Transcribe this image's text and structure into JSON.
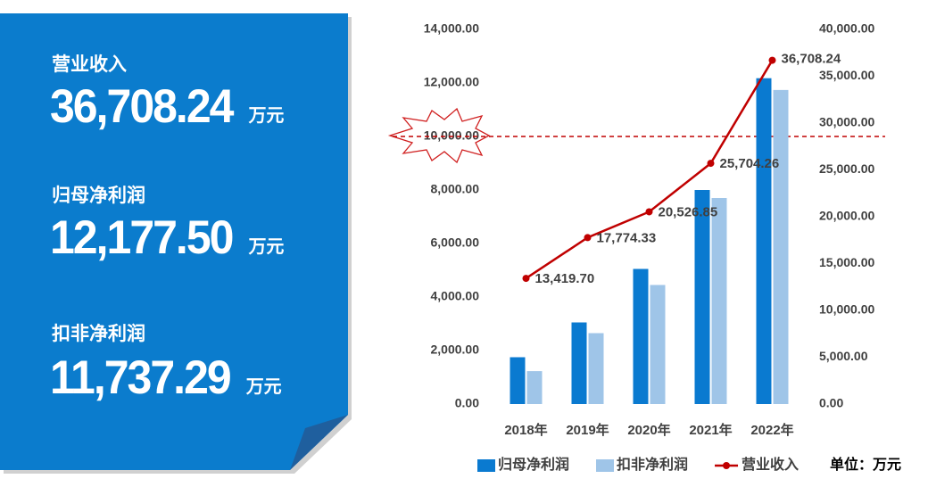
{
  "kpis": [
    {
      "label": "营业收入",
      "value": "36,708.24",
      "unit": "万元"
    },
    {
      "label": "归母净利润",
      "value": "12,177.50",
      "unit": "万元"
    },
    {
      "label": "扣非净利润",
      "value": "11,737.29",
      "unit": "万元"
    }
  ],
  "chart_data": {
    "type": "combo",
    "categories": [
      "2018年",
      "2019年",
      "2020年",
      "2021年",
      "2022年"
    ],
    "series": [
      {
        "name": "归母净利润",
        "type": "bar",
        "color": "#0a7ad0",
        "values": [
          1750,
          3050,
          5050,
          8000,
          12177.5
        ]
      },
      {
        "name": "扣非净利润",
        "type": "bar",
        "color": "#9fc5e8",
        "values": [
          1230,
          2650,
          4450,
          7700,
          11737.29
        ]
      },
      {
        "name": "营业收入",
        "type": "line",
        "axis": "y2",
        "color": "#c00000",
        "values": [
          13419.7,
          17774.33,
          20526.85,
          25704.26,
          36708.24
        ],
        "value_labels": [
          "13,419.70",
          "17,774.33",
          "20,526.85",
          "25,704.26",
          "36,708.24"
        ]
      }
    ],
    "ylim": [
      0,
      14000
    ],
    "yticks": [
      {
        "value": 0,
        "label": "0.00"
      },
      {
        "value": 2000,
        "label": "2,000.00"
      },
      {
        "value": 4000,
        "label": "4,000.00"
      },
      {
        "value": 6000,
        "label": "6,000.00"
      },
      {
        "value": 8000,
        "label": "8,000.00"
      },
      {
        "value": 10000,
        "label": "10,000.00"
      },
      {
        "value": 12000,
        "label": "12,000.00"
      },
      {
        "value": 14000,
        "label": "14,000.00"
      }
    ],
    "y2lim": [
      0,
      40000
    ],
    "y2ticks": [
      {
        "value": 0,
        "label": "0.00"
      },
      {
        "value": 5000,
        "label": "5,000.00"
      },
      {
        "value": 10000,
        "label": "10,000.00"
      },
      {
        "value": 15000,
        "label": "15,000.00"
      },
      {
        "value": 20000,
        "label": "20,000.00"
      },
      {
        "value": 25000,
        "label": "25,000.00"
      },
      {
        "value": 30000,
        "label": "30,000.00"
      },
      {
        "value": 35000,
        "label": "35,000.00"
      },
      {
        "value": 40000,
        "label": "40,000.00"
      }
    ],
    "reference_line": {
      "value": 10000,
      "color": "#c00000"
    },
    "unit_note": "单位：万元"
  }
}
